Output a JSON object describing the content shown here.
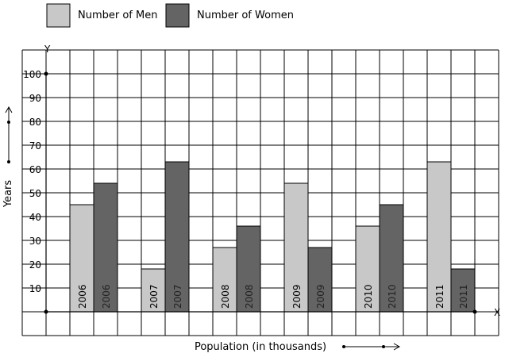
{
  "chart_data": {
    "type": "bar",
    "title": "",
    "categories": [
      "2006",
      "2007",
      "2008",
      "2009",
      "2010",
      "2011"
    ],
    "series": [
      {
        "name": "Number of Men",
        "color": "#c8c8c8",
        "values": [
          45,
          18,
          27,
          54,
          36,
          63
        ]
      },
      {
        "name": "Number of Women",
        "color": "#646464",
        "values": [
          54,
          63,
          36,
          27,
          45,
          18
        ]
      }
    ],
    "ylim": [
      0,
      100
    ],
    "yticks": [
      "10",
      "20",
      "30",
      "40",
      "50",
      "60",
      "70",
      "80",
      "90",
      "100"
    ],
    "ylabel": "Years",
    "xlabel": "Population (in thousands)",
    "x_axis_letter": "X",
    "y_axis_letter": "Y",
    "grid": true,
    "legend_position": "top-left",
    "bar_labels": "category"
  }
}
